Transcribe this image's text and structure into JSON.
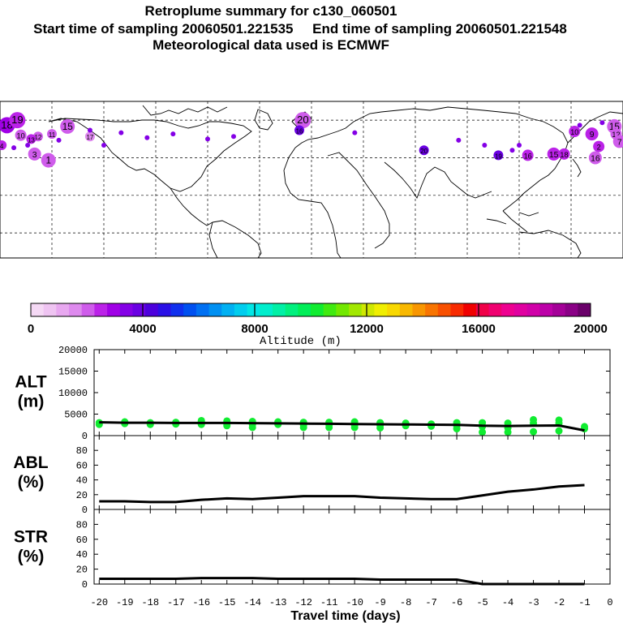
{
  "header": {
    "title": "Retroplume summary for c130_060501",
    "sampling": "Start time of sampling 20060501.221535     End time of sampling 20060501.221548",
    "met": "Meteorological data used is ECMWF"
  },
  "colorbar": {
    "colors": [
      "#f5d9f5",
      "#efc4f2",
      "#e8a8f0",
      "#de8aee",
      "#cf5ceb",
      "#bb22e8",
      "#a000e6",
      "#8400e6",
      "#6a00e3",
      "#4c00dc",
      "#2a10e6",
      "#1030ee",
      "#0050f0",
      "#0070f2",
      "#0090f2",
      "#00b0f2",
      "#00cdee",
      "#00e6e6",
      "#00eecc",
      "#00f0a6",
      "#00f07e",
      "#00ee58",
      "#10ec30",
      "#40ea10",
      "#72e800",
      "#a2e800",
      "#cfe800",
      "#f0ee00",
      "#f8d800",
      "#f8b800",
      "#f89600",
      "#f87400",
      "#f85000",
      "#f82a00",
      "#f00000",
      "#f00048",
      "#f00070",
      "#ee0090",
      "#e000a0",
      "#d000a8",
      "#bc00a8",
      "#a40098",
      "#8a0086",
      "#6a006a"
    ],
    "tick_labels": [
      "0",
      "4000",
      "8000",
      "12000",
      "16000",
      "20000"
    ],
    "label": "Altitude (m)",
    "range": [
      0,
      20000
    ]
  },
  "map": {
    "clusters": [
      {
        "label": "18",
        "fill": "#a000e6",
        "lon": -176,
        "lat": 56,
        "r": 10
      },
      {
        "label": "19",
        "fill": "#bb22e8",
        "lon": -170,
        "lat": 60,
        "r": 10
      },
      {
        "label": "15",
        "fill": "#cf5ceb",
        "lon": -141,
        "lat": 55,
        "r": 9
      },
      {
        "label": "20",
        "fill": "#cf5ceb",
        "lon": -5,
        "lat": 60,
        "r": 10
      },
      {
        "label": "16",
        "fill": "#6a00e3",
        "lon": -7,
        "lat": 52,
        "r": 6
      },
      {
        "label": "15",
        "fill": "#cf5ceb",
        "lon": 175,
        "lat": 55,
        "r": 9
      },
      {
        "label": "10",
        "fill": "#bb22e8",
        "lon": 152,
        "lat": 51,
        "r": 7
      },
      {
        "label": "9",
        "fill": "#bb22e8",
        "lon": 162,
        "lat": 49,
        "r": 8
      },
      {
        "label": "12",
        "fill": "#cf5ceb",
        "lon": 176,
        "lat": 49,
        "r": 7
      },
      {
        "label": "7",
        "fill": "#cf5ceb",
        "lon": 178,
        "lat": 43,
        "r": 8
      },
      {
        "label": "2",
        "fill": "#bb22e8",
        "lon": 166,
        "lat": 39,
        "r": 7
      },
      {
        "label": "15",
        "fill": "#bb22e8",
        "lon": 140,
        "lat": 33,
        "r": 8
      },
      {
        "label": "18",
        "fill": "#bb22e8",
        "lon": 146,
        "lat": 33,
        "r": 7
      },
      {
        "label": "16",
        "fill": "#cf5ceb",
        "lon": 164,
        "lat": 30,
        "r": 8
      },
      {
        "label": "1",
        "fill": "#cf5ceb",
        "lon": -152,
        "lat": 28,
        "r": 9
      },
      {
        "label": "10",
        "fill": "#cf5ceb",
        "lon": -168,
        "lat": 48,
        "r": 7
      },
      {
        "label": "12",
        "fill": "#cf5ceb",
        "lon": -158,
        "lat": 47,
        "r": 6
      },
      {
        "label": "13",
        "fill": "#bb22e8",
        "lon": -162,
        "lat": 45,
        "r": 6
      },
      {
        "label": "11",
        "fill": "#cf5ceb",
        "lon": -150,
        "lat": 49,
        "r": 6
      },
      {
        "label": "4",
        "fill": "#bb22e8",
        "lon": -179,
        "lat": 40,
        "r": 6
      },
      {
        "label": "3",
        "fill": "#cf5ceb",
        "lon": -160,
        "lat": 33,
        "r": 8
      },
      {
        "label": "17",
        "fill": "#de8aee",
        "lon": -128,
        "lat": 47,
        "r": 6
      },
      {
        "label": "16",
        "fill": "#bb22e8",
        "lon": 125,
        "lat": 32,
        "r": 7
      },
      {
        "label": "19",
        "fill": "#6a00e3",
        "lon": 108,
        "lat": 32,
        "r": 6
      },
      {
        "label": "20",
        "fill": "#6a00e3",
        "lon": 65,
        "lat": 36,
        "r": 6
      }
    ]
  },
  "panels": {
    "alt": {
      "label_top": "ALT",
      "label_bottom": "(m)",
      "ticks": [
        "0",
        "5000",
        "10000",
        "15000",
        "20000"
      ],
      "ylim": [
        0,
        20000
      ]
    },
    "abl": {
      "label_top": "ABL",
      "label_bottom": "(%)",
      "ticks": [
        "0",
        "20",
        "40",
        "60",
        "80"
      ],
      "ylim": [
        0,
        100
      ]
    },
    "str": {
      "label_top": "STR",
      "label_bottom": "(%)",
      "ticks": [
        "0",
        "20",
        "40",
        "60",
        "80"
      ],
      "ylim": [
        0,
        100
      ]
    }
  },
  "xaxis": {
    "ticks": [
      "-20",
      "-19",
      "-18",
      "-17",
      "-16",
      "-15",
      "-14",
      "-13",
      "-12",
      "-11",
      "-10",
      "-9",
      "-8",
      "-7",
      "-6",
      "-5",
      "-4",
      "-3",
      "-2",
      "-1",
      "0"
    ],
    "label": "Travel time (days)",
    "xlim": [
      -20.2,
      0
    ]
  },
  "chart_data": [
    {
      "type": "line",
      "title": "ALT",
      "xlabel": "Travel time (days)",
      "ylabel": "ALT (m)",
      "ylim": [
        0,
        20000
      ],
      "x": [
        -20,
        -19,
        -18,
        -17,
        -16,
        -15,
        -14,
        -13,
        -12,
        -11,
        -10,
        -9,
        -8,
        -7,
        -6,
        -5,
        -4,
        -3,
        -2,
        -1
      ],
      "series": [
        {
          "name": "mean altitude",
          "values": [
            3100,
            3000,
            3000,
            2950,
            2950,
            2950,
            2900,
            2850,
            2800,
            2750,
            2700,
            2650,
            2600,
            2550,
            2500,
            2300,
            2250,
            2300,
            2350,
            1200
          ]
        },
        {
          "name": "cluster altitudes",
          "color": "#10ec30",
          "points": [
            [
              -20,
              3000
            ],
            [
              -20,
              2600
            ],
            [
              -19,
              2800
            ],
            [
              -19,
              3200
            ],
            [
              -18,
              3000
            ],
            [
              -18,
              2600
            ],
            [
              -17,
              3100
            ],
            [
              -17,
              2700
            ],
            [
              -16,
              3200
            ],
            [
              -16,
              2600
            ],
            [
              -16,
              3500
            ],
            [
              -15,
              3400
            ],
            [
              -15,
              2700
            ],
            [
              -15,
              2300
            ],
            [
              -14,
              3300
            ],
            [
              -14,
              2600
            ],
            [
              -14,
              1900
            ],
            [
              -13,
              3200
            ],
            [
              -13,
              2600
            ],
            [
              -12,
              3100
            ],
            [
              -12,
              2500
            ],
            [
              -12,
              1900
            ],
            [
              -11,
              3100
            ],
            [
              -11,
              2500
            ],
            [
              -11,
              1900
            ],
            [
              -10,
              3200
            ],
            [
              -10,
              2500
            ],
            [
              -10,
              1900
            ],
            [
              -9,
              3000
            ],
            [
              -9,
              2400
            ],
            [
              -9,
              1800
            ],
            [
              -8,
              2900
            ],
            [
              -8,
              2300
            ],
            [
              -7,
              2700
            ],
            [
              -7,
              2200
            ],
            [
              -6,
              3000
            ],
            [
              -6,
              2300
            ],
            [
              -6,
              1600
            ],
            [
              -5,
              3000
            ],
            [
              -5,
              2100
            ],
            [
              -5,
              800
            ],
            [
              -4,
              2900
            ],
            [
              -4,
              1800
            ],
            [
              -4,
              800
            ],
            [
              -3,
              3700
            ],
            [
              -3,
              2900
            ],
            [
              -3,
              900
            ],
            [
              -2,
              3600
            ],
            [
              -2,
              2900
            ],
            [
              -2,
              1100
            ],
            [
              -1,
              2100
            ],
            [
              -1,
              1600
            ]
          ]
        }
      ]
    },
    {
      "type": "line",
      "title": "ABL",
      "ylabel": "ABL (%)",
      "ylim": [
        0,
        100
      ],
      "x": [
        -20,
        -19,
        -18,
        -17,
        -16,
        -15,
        -14,
        -13,
        -12,
        -11,
        -10,
        -9,
        -8,
        -7,
        -6,
        -5,
        -4,
        -3,
        -2,
        -1
      ],
      "values": [
        11,
        11,
        10,
        10,
        13,
        15,
        14,
        16,
        18,
        18,
        18,
        16,
        15,
        14,
        14,
        19,
        24,
        27,
        31,
        33
      ]
    },
    {
      "type": "line",
      "title": "STR",
      "ylabel": "STR (%)",
      "ylim": [
        0,
        100
      ],
      "x": [
        -20,
        -19,
        -18,
        -17,
        -16,
        -15,
        -14,
        -13,
        -12,
        -11,
        -10,
        -9,
        -8,
        -7,
        -6,
        -5,
        -4,
        -3,
        -2,
        -1
      ],
      "values": [
        7,
        7,
        7,
        7,
        8,
        8,
        8,
        7,
        7,
        7,
        7,
        6,
        6,
        6,
        6,
        0,
        0,
        0,
        0,
        0
      ]
    }
  ]
}
